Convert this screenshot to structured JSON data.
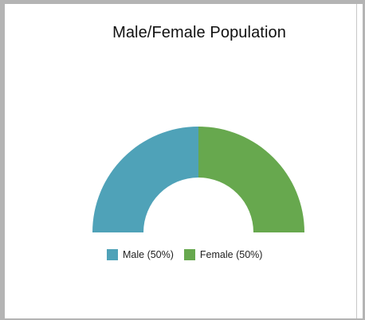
{
  "chart_data": {
    "type": "pie",
    "subtype": "semi-donut",
    "title": "Male/Female Population",
    "slices": [
      {
        "label": "Male",
        "value": 50,
        "legend_text": "Male (50%)",
        "color": "#4fa2b8"
      },
      {
        "label": "Female",
        "value": 50,
        "legend_text": "Female (50%)",
        "color": "#67a84e"
      }
    ],
    "legend_position": "bottom"
  }
}
